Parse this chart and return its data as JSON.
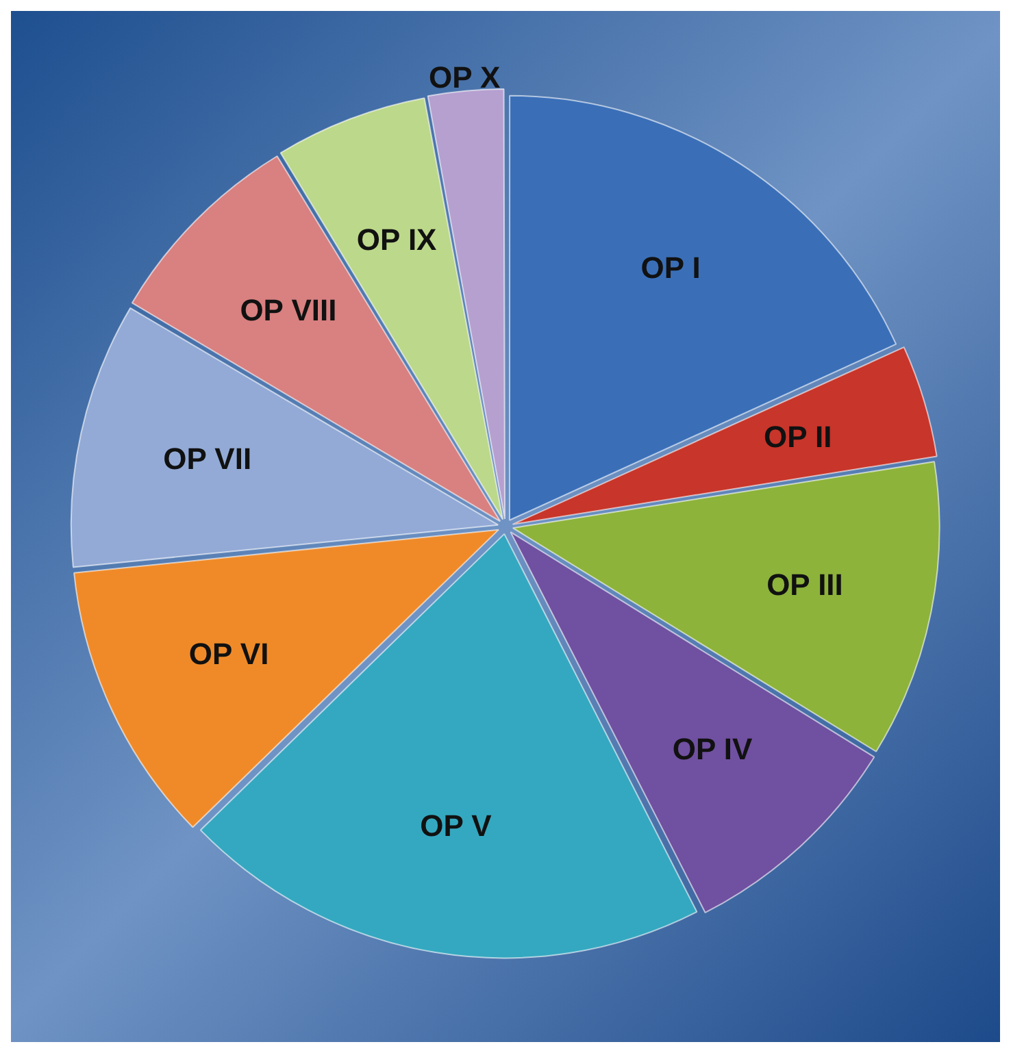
{
  "chart_data": {
    "type": "pie",
    "categories": [
      "OP I",
      "OP II",
      "OP III",
      "OP IV",
      "OP V",
      "OP VI",
      "OP VII",
      "OP VIII",
      "OP IX",
      "OP X"
    ],
    "values": [
      18.2,
      4.3,
      11.3,
      8.7,
      20.2,
      10.7,
      10.1,
      7.8,
      5.8,
      2.9
    ],
    "colors": [
      "#3a6fb8",
      "#c8352a",
      "#8db33a",
      "#7050a0",
      "#34a8c0",
      "#f08a28",
      "#93aad6",
      "#d98080",
      "#bcd88a",
      "#b5a0d0"
    ],
    "legend": false
  }
}
